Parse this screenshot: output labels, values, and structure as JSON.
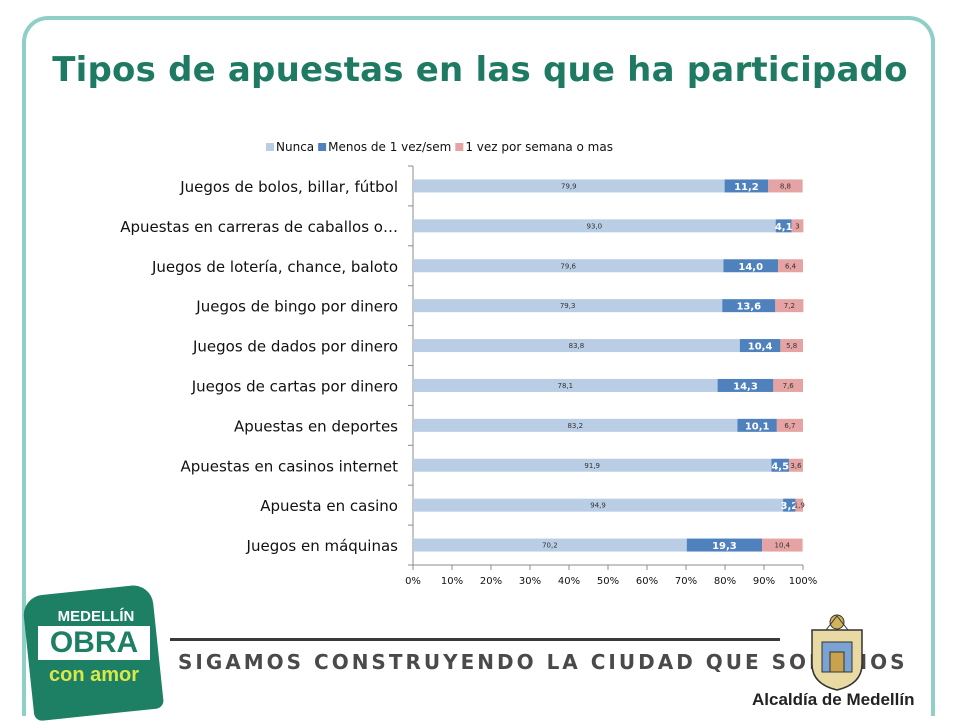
{
  "title": "Tipos de apuestas en las que ha participado",
  "chart_data": {
    "type": "bar",
    "orientation": "horizontal",
    "stacked": "percent",
    "title": "",
    "legend_position": "top",
    "categories": [
      "Juegos de bolos, billar, fútbol",
      "Apuestas en carreras de caballos o…",
      "Juegos de lotería, chance, baloto",
      "Juegos de bingo por dinero",
      "Juegos de dados por dinero",
      "Juegos de cartas por dinero",
      "Apuestas en deportes",
      "Apuestas en casinos internet",
      "Apuesta en casino",
      "Juegos en máquinas"
    ],
    "series": [
      {
        "name": "Nunca",
        "color": "#b9cde5",
        "values": [
          79.9,
          93.0,
          79.6,
          79.3,
          83.8,
          78.1,
          83.2,
          91.9,
          94.9,
          70.2
        ],
        "labels": [
          "79,9",
          "93,0",
          "79,6",
          "79,3",
          "83,8",
          "78,1",
          "83,2",
          "91,9",
          "94,9",
          "70,2"
        ]
      },
      {
        "name": "Menos de 1 vez/sem",
        "color": "#4f81bd",
        "values": [
          11.2,
          4.1,
          14.0,
          13.6,
          10.4,
          14.3,
          10.1,
          4.5,
          3.2,
          19.3
        ],
        "labels": [
          "11,2",
          "4,1",
          "14,0",
          "13,6",
          "10,4",
          "14,3",
          "10,1",
          "4,5",
          "3,2",
          "19,3"
        ]
      },
      {
        "name": "1 vez por semana o mas",
        "color": "#e6a3a3",
        "values": [
          8.8,
          3,
          6.4,
          7.2,
          5.8,
          7.6,
          6.7,
          3.6,
          1.9,
          10.4
        ],
        "labels": [
          "8,8",
          "3",
          "6,4",
          "7,2",
          "5,8",
          "7,6",
          "6,7",
          "3,6",
          "1,9",
          "10,4"
        ]
      }
    ],
    "xticks": [
      "0%",
      "10%",
      "20%",
      "30%",
      "40%",
      "50%",
      "60%",
      "70%",
      "80%",
      "90%",
      "100%"
    ],
    "xlim": [
      0,
      100
    ],
    "xlabel": "",
    "ylabel": ""
  },
  "footer": {
    "tagline": "SIGAMOS CONSTRUYENDO LA CIUDAD QUE SOÑAMOS",
    "logo": {
      "line1": "MEDELLÍN",
      "line2": "OBRA",
      "line3": "con amor"
    },
    "institution": "Alcaldía de Medellín"
  }
}
